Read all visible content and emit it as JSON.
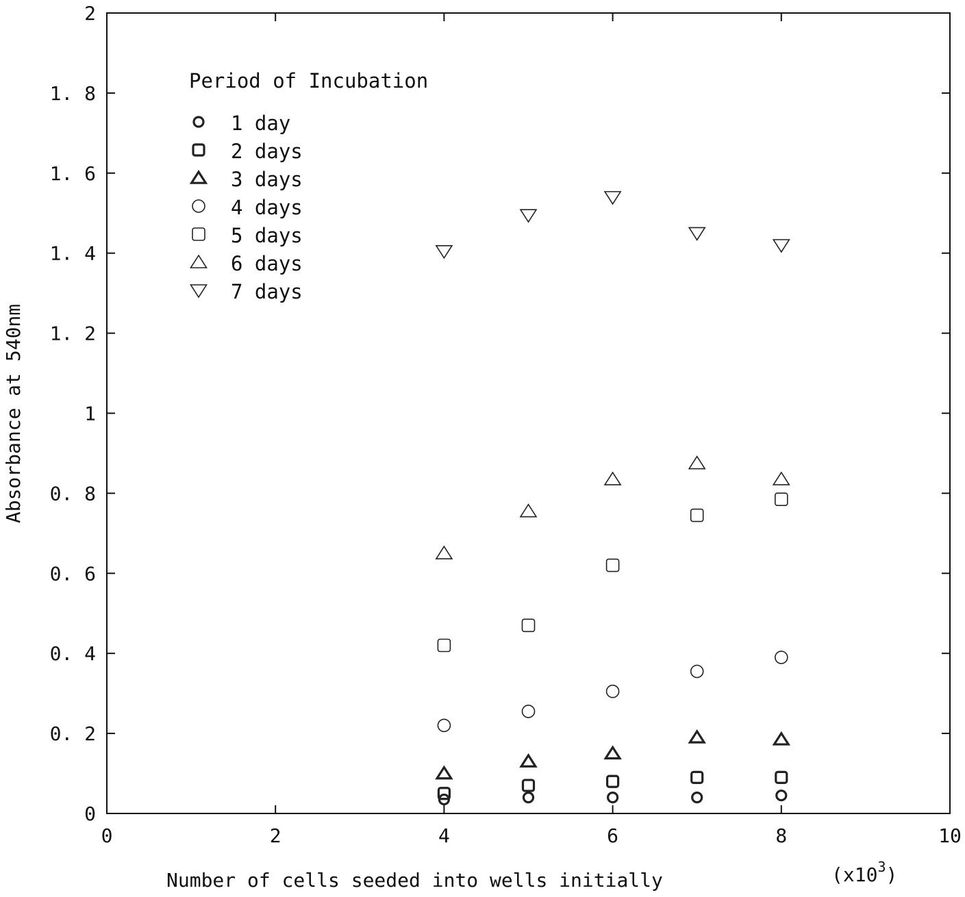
{
  "chart_data": {
    "type": "scatter",
    "xlabel": "Number of cells seeded into wells initially",
    "xlabel_multiplier": "(x10",
    "xlabel_exponent": "3",
    "xlabel_close": ")",
    "ylabel": "Absorbance at 540nm",
    "xlim": [
      0,
      10
    ],
    "ylim": [
      0,
      2
    ],
    "x_ticks": [
      0,
      2,
      4,
      6,
      8,
      10
    ],
    "y_ticks": [
      0,
      0.2,
      0.4,
      0.6,
      0.8,
      1,
      1.2,
      1.4,
      1.6,
      1.8,
      2
    ],
    "x_tick_labels": [
      "0",
      "2",
      "4",
      "6",
      "8",
      "10"
    ],
    "y_tick_labels": [
      "0",
      "0. 2",
      "0. 4",
      "0. 6",
      "0. 8",
      "1",
      "1. 2",
      "1. 4",
      "1. 6",
      "1. 8",
      "2"
    ],
    "grid": false,
    "legend": {
      "title": "Period of Incubation",
      "placement": "top-left"
    },
    "series": [
      {
        "name": "1 day",
        "marker": "circle-bold",
        "x": [
          4,
          5,
          6,
          7,
          8
        ],
        "y": [
          0.035,
          0.04,
          0.04,
          0.04,
          0.045
        ]
      },
      {
        "name": "2 days",
        "marker": "square-bold",
        "x": [
          4,
          5,
          6,
          7,
          8
        ],
        "y": [
          0.05,
          0.07,
          0.08,
          0.09,
          0.09
        ]
      },
      {
        "name": "3 days",
        "marker": "triangle-bold",
        "x": [
          4,
          5,
          6,
          7,
          8
        ],
        "y": [
          0.1,
          0.13,
          0.15,
          0.19,
          0.185
        ]
      },
      {
        "name": "4 days",
        "marker": "circle",
        "x": [
          4,
          5,
          6,
          7,
          8
        ],
        "y": [
          0.22,
          0.255,
          0.305,
          0.355,
          0.39
        ]
      },
      {
        "name": "5 days",
        "marker": "square",
        "x": [
          4,
          5,
          6,
          7,
          8
        ],
        "y": [
          0.42,
          0.47,
          0.62,
          0.745,
          0.785
        ]
      },
      {
        "name": "6 days",
        "marker": "triangle",
        "x": [
          4,
          5,
          6,
          7,
          8
        ],
        "y": [
          0.65,
          0.755,
          0.835,
          0.875,
          0.835
        ]
      },
      {
        "name": "7 days",
        "marker": "triangle-down",
        "x": [
          4,
          5,
          6,
          7,
          8
        ],
        "y": [
          1.405,
          1.495,
          1.54,
          1.45,
          1.42
        ]
      }
    ]
  }
}
